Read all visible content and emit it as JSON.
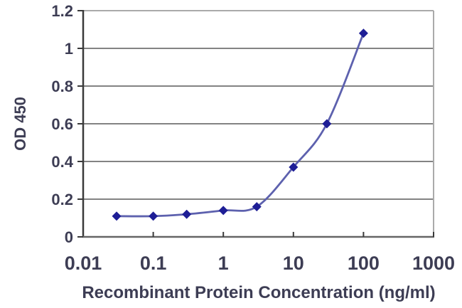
{
  "style": {
    "background": "#ffffff",
    "text_color": "#3d3d54",
    "gridline_color": "#838383",
    "plot_border_color": "#aaaaaa",
    "y_axis_color": "#3a3a3a",
    "x_axis_color": "#666666",
    "tick_color": "#3a3a3a"
  },
  "chart_data": {
    "type": "line",
    "title": "",
    "xlabel": "Recombinant Protein Concentration (ng/ml)",
    "ylabel": "OD 450",
    "x_scale": "log",
    "xlim": [
      0.01,
      1000
    ],
    "ylim": [
      0,
      1.2
    ],
    "x_tick_values": [
      0.01,
      0.1,
      1,
      10,
      100,
      1000
    ],
    "x_tick_labels": [
      "0.01",
      "0.1",
      "1",
      "10",
      "100",
      "1000"
    ],
    "y_tick_values": [
      0,
      0.2,
      0.4,
      0.6,
      0.8,
      1,
      1.2
    ],
    "y_tick_labels": [
      "0",
      "0.2",
      "0.4",
      "0.6",
      "0.8",
      "1",
      "1.2"
    ],
    "grid": "horizontal",
    "legend_position": "none",
    "series": [
      {
        "name": "OD 450",
        "x": [
          0.03,
          0.1,
          0.3,
          1,
          3,
          10,
          30,
          100
        ],
        "values": [
          0.11,
          0.11,
          0.12,
          0.14,
          0.16,
          0.37,
          0.6,
          1.08
        ],
        "line_style": "smooth",
        "line_color": "#5d61ae",
        "marker": "diamond",
        "marker_color": "#1e1e96"
      }
    ]
  }
}
